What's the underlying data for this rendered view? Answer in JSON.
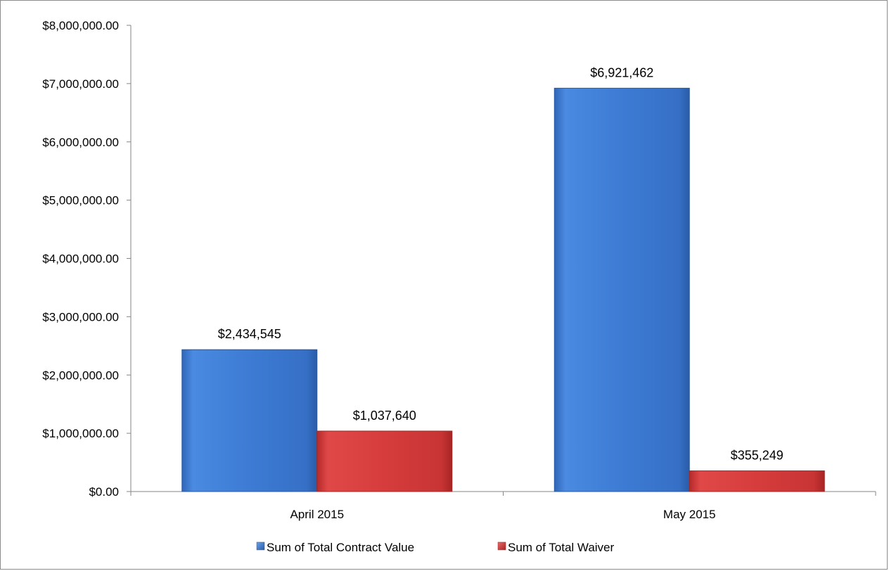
{
  "chart_data": {
    "type": "bar",
    "title": "",
    "xlabel": "",
    "ylabel": "",
    "categories": [
      "April 2015",
      "May 2015"
    ],
    "series": [
      {
        "name": "Sum of Total Contract Value",
        "values": [
          2434545,
          6921462
        ],
        "labels": [
          "$2,434,545",
          "$6,921,462"
        ],
        "color": "#3f7fd8"
      },
      {
        "name": "Sum of Total Waiver",
        "values": [
          1037640,
          355249
        ],
        "labels": [
          "$1,037,640",
          "$355,249"
        ],
        "color": "#d93a3a"
      }
    ],
    "ylim": [
      0,
      8000000
    ],
    "yticks": [
      0,
      1000000,
      2000000,
      3000000,
      4000000,
      5000000,
      6000000,
      7000000,
      8000000
    ],
    "ytick_labels": [
      "$0.00",
      "$1,000,000.00",
      "$2,000,000.00",
      "$3,000,000.00",
      "$4,000,000.00",
      "$5,000,000.00",
      "$6,000,000.00",
      "$7,000,000.00",
      "$8,000,000.00"
    ],
    "grid": false,
    "legend_position": "bottom"
  }
}
